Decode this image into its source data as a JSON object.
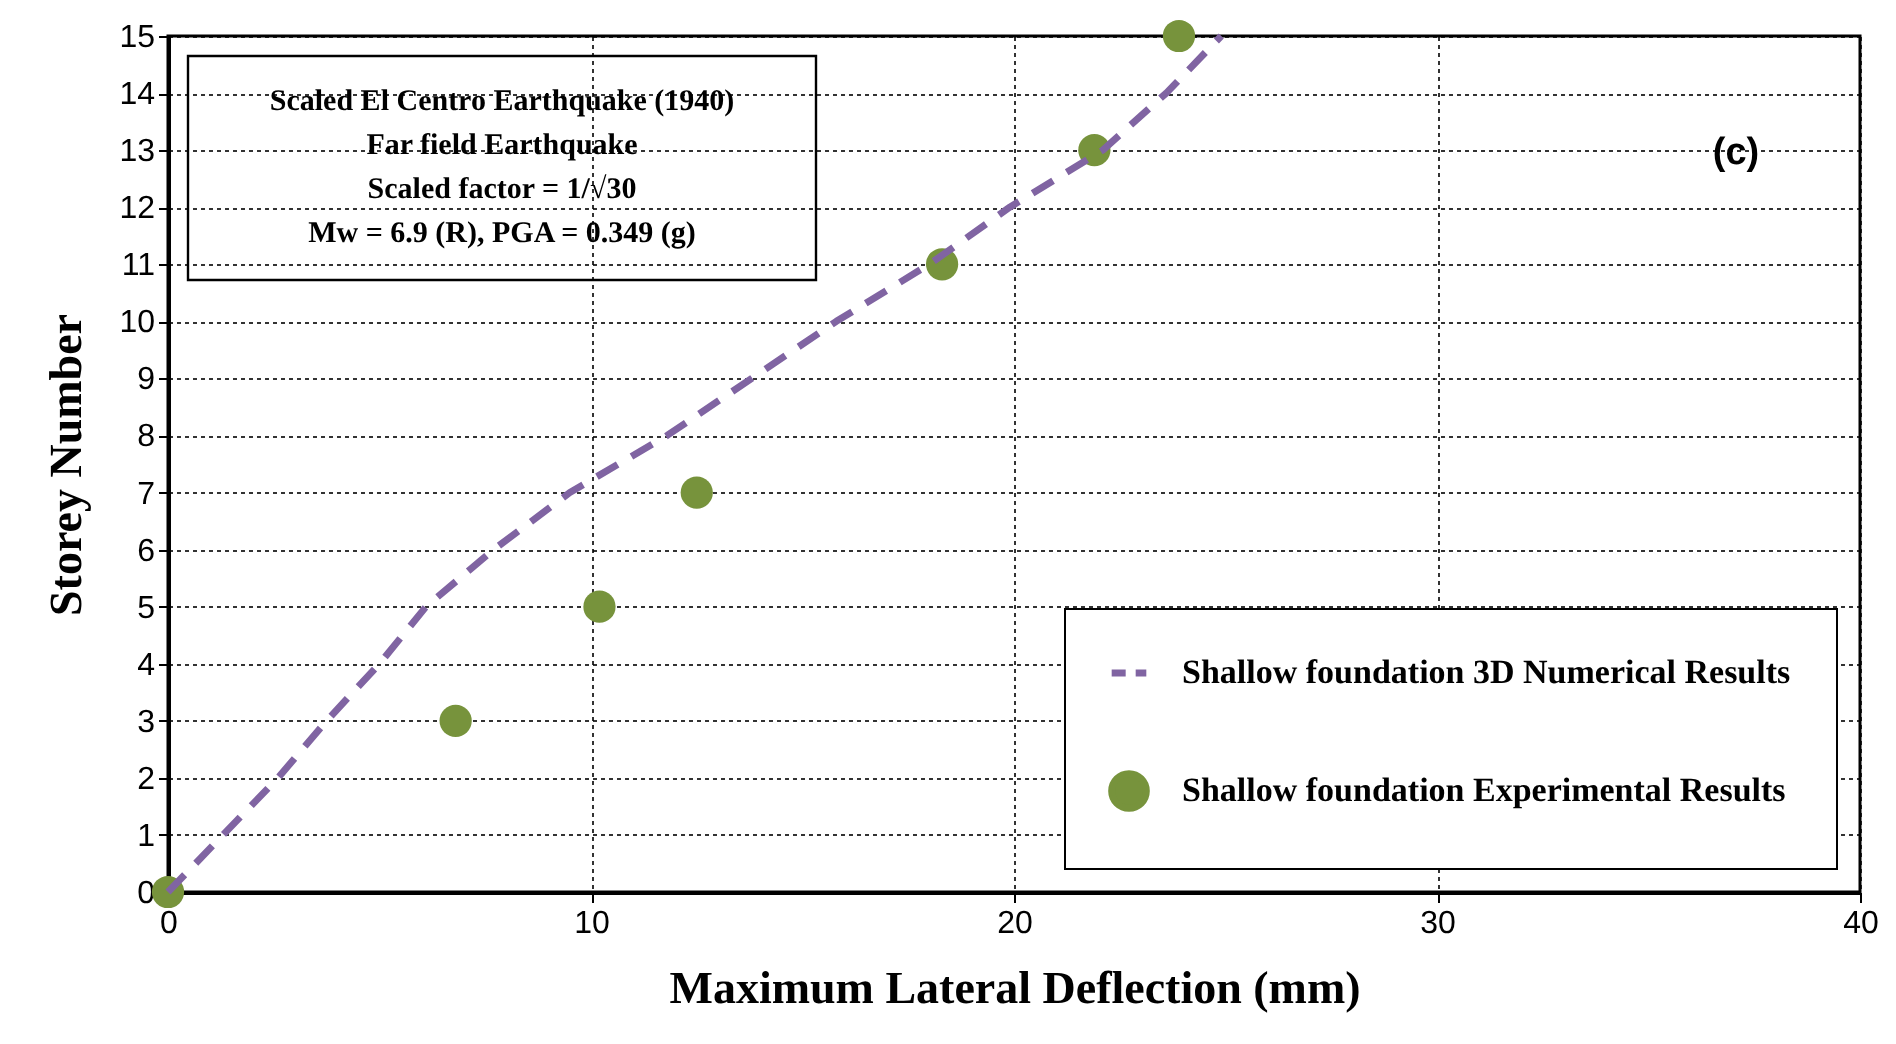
{
  "chart_data": {
    "type": "line",
    "xlabel": "Maximum Lateral Deflection (mm)",
    "ylabel": "Storey Number",
    "annotations": [
      "Scaled El Centro Earthquake (1940)",
      "Far field Earthquake",
      "Scaled factor = 1/√30",
      "Mw = 6.9 (R), PGA = 0.349 (g)",
      "(c)"
    ],
    "series": [
      {
        "name": "Shallow foundation 3D Numerical Results",
        "color": "#8064a2",
        "line_style": "dashed",
        "marker": "none",
        "x": [
          0,
          1.3,
          2.6,
          3.75,
          5.0,
          6.1,
          7.7,
          9.5,
          11.8,
          13.8,
          15.8,
          18.0,
          19.9,
          22.1,
          23.6,
          24.9
        ],
        "values": [
          0,
          1,
          2,
          3,
          4,
          5,
          6,
          7,
          8,
          9,
          10,
          11,
          12,
          13,
          14,
          15
        ]
      },
      {
        "name": "Shallow foundation Experimental Results",
        "type": "scatter",
        "color": "#77933c",
        "marker": "circle",
        "x": [
          0,
          6.8,
          10.2,
          12.5,
          18.3,
          21.9,
          23.9
        ],
        "values": [
          0,
          3,
          5,
          7,
          11,
          13,
          15
        ]
      }
    ],
    "xlim": [
      0,
      40
    ],
    "xticks": [
      0,
      10,
      20,
      30,
      40
    ],
    "ylim": [
      0,
      15
    ],
    "yticks": [
      0,
      1,
      2,
      3,
      4,
      5,
      6,
      7,
      8,
      9,
      10,
      11,
      12,
      13,
      14,
      15
    ],
    "grid": true,
    "legend": "bottom right"
  }
}
